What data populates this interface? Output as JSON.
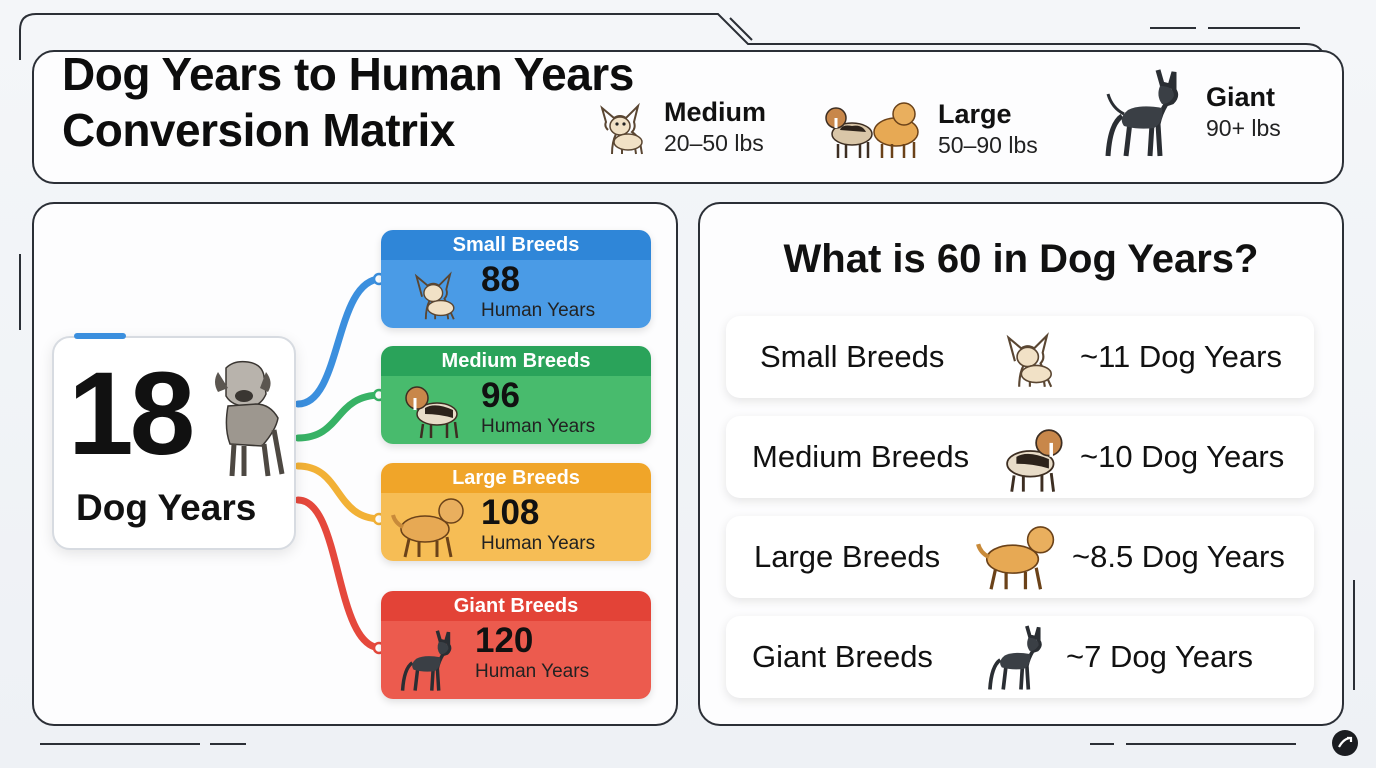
{
  "header": {
    "title_line1": "Dog Years to Human Years",
    "title_line2": "Conversion Matrix",
    "legend": [
      {
        "name": "Medium",
        "weight": "20–50 lbs",
        "icon": "chihuahua-icon"
      },
      {
        "name": "Large",
        "weight": "50–90 lbs",
        "icon": "beagle-and-retriever-icon"
      },
      {
        "name": "Giant",
        "weight": "90+ lbs",
        "icon": "great-dane-icon"
      }
    ]
  },
  "left": {
    "hub": {
      "number": "18",
      "label": "Dog Years",
      "icon": "mastiff-icon"
    },
    "cards": [
      {
        "title": "Small Breeds",
        "value": "88",
        "unit": "Human Years",
        "color": "#2f86d8",
        "line": "#3b8fde",
        "icon": "chihuahua-icon"
      },
      {
        "title": "Medium Breeds",
        "value": "96",
        "unit": "Human Years",
        "color": "#2aa35a",
        "line": "#37b265",
        "icon": "beagle-icon"
      },
      {
        "title": "Large Breeds",
        "value": "108",
        "unit": "Human Years",
        "color": "#f0a529",
        "line": "#f2b136",
        "icon": "golden-retriever-icon"
      },
      {
        "title": "Giant Breeds",
        "value": "120",
        "unit": "Human Years",
        "color": "#e34337",
        "line": "#e5483c",
        "icon": "great-dane-icon"
      }
    ]
  },
  "right": {
    "title": "What is 60 in Dog Years?",
    "rows": [
      {
        "label": "Small Breeds",
        "result": "~11 Dog Years",
        "icon": "chihuahua-icon"
      },
      {
        "label": "Medium Breeds",
        "result": "~10 Dog Years",
        "icon": "beagle-icon"
      },
      {
        "label": "Large Breeds",
        "result": "~8.5 Dog Years",
        "icon": "golden-retriever-icon"
      },
      {
        "label": "Giant Breeds",
        "result": "~7 Dog Years",
        "icon": "great-dane-icon"
      }
    ]
  }
}
